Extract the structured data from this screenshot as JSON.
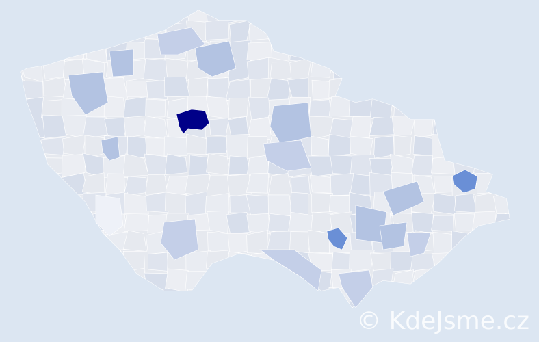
{
  "map": {
    "colors": {
      "background": "#dce6f2",
      "base": "#e6e9ef",
      "light": "#d5dbe8",
      "medium": "#b3c3e2",
      "strong": "#6a8fd6",
      "max": "#000088",
      "border": "#ffffff"
    },
    "highlight_regions": [
      {
        "level": "max"
      },
      {
        "level": "strong"
      },
      {
        "level": "strong"
      }
    ]
  },
  "watermark": {
    "text": "© KdeJsme.cz"
  }
}
